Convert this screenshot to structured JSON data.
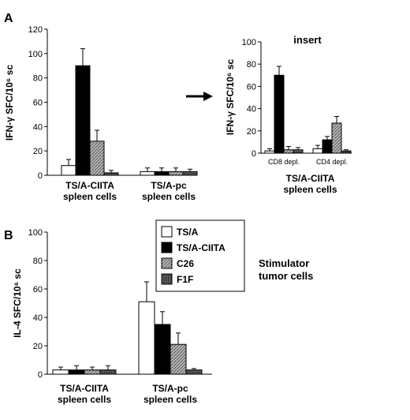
{
  "panel_labels": {
    "a": "A",
    "b": "B"
  },
  "colors": {
    "TS/A": "#ffffff",
    "TS/A-CIITA": "#000000",
    "C26": "#a8a8a8",
    "F1F": "#404040"
  },
  "chart_data": [
    {
      "id": "panelA",
      "type": "bar",
      "ylabel": "IFN-γ SFC/10⁶ sc",
      "ylim": [
        0,
        120
      ],
      "yticks": [
        0,
        20,
        40,
        60,
        80,
        100,
        120
      ],
      "grid": false,
      "categories": [
        "TS/A-CIITA\nspleen cells",
        "TS/A-pc\nspleen cells"
      ],
      "series": [
        {
          "name": "TS/A",
          "values": [
            8,
            3
          ],
          "errors": [
            5,
            3
          ]
        },
        {
          "name": "TS/A-CIITA",
          "values": [
            90,
            3
          ],
          "errors": [
            14,
            3
          ]
        },
        {
          "name": "C26",
          "values": [
            28,
            3
          ],
          "errors": [
            9,
            3
          ]
        },
        {
          "name": "F1F",
          "values": [
            2,
            3
          ],
          "errors": [
            2,
            2
          ]
        }
      ]
    },
    {
      "id": "insert",
      "type": "bar",
      "title": "insert",
      "ylabel": "IFN-γ SFC/10⁶ sc",
      "xlabel": "TS/A-CIITA\nspleen cells",
      "ylim": [
        0,
        100
      ],
      "yticks": [
        0,
        20,
        40,
        60,
        80,
        100
      ],
      "grid": false,
      "categories": [
        "CD8 depl.",
        "CD4 depl."
      ],
      "series": [
        {
          "name": "TS/A",
          "values": [
            2,
            4
          ],
          "errors": [
            2,
            3
          ]
        },
        {
          "name": "TS/A-CIITA",
          "values": [
            70,
            12
          ],
          "errors": [
            8,
            3
          ]
        },
        {
          "name": "C26",
          "values": [
            3,
            27
          ],
          "errors": [
            3,
            6
          ]
        },
        {
          "name": "F1F",
          "values": [
            3,
            2
          ],
          "errors": [
            2,
            1
          ]
        }
      ]
    },
    {
      "id": "panelB",
      "type": "bar",
      "ylabel": "IL-4 SFC/10⁶ sc",
      "ylim": [
        0,
        100
      ],
      "yticks": [
        0,
        20,
        40,
        60,
        80,
        100
      ],
      "grid": false,
      "legend": {
        "placement": "top-right",
        "title": "Stimulator\ntumor cells",
        "entries": [
          "TS/A",
          "TS/A-CIITA",
          "C26",
          "F1F"
        ]
      },
      "categories": [
        "TS/A-CIITA\nspleen cells",
        "TS/A-pc\nspleen cells"
      ],
      "series": [
        {
          "name": "TS/A",
          "values": [
            3,
            51
          ],
          "errors": [
            2,
            14
          ]
        },
        {
          "name": "TS/A-CIITA",
          "values": [
            3,
            35
          ],
          "errors": [
            3,
            9
          ]
        },
        {
          "name": "C26",
          "values": [
            3,
            21
          ],
          "errors": [
            2,
            8
          ]
        },
        {
          "name": "F1F",
          "values": [
            3,
            3
          ],
          "errors": [
            3,
            1
          ]
        }
      ]
    }
  ]
}
